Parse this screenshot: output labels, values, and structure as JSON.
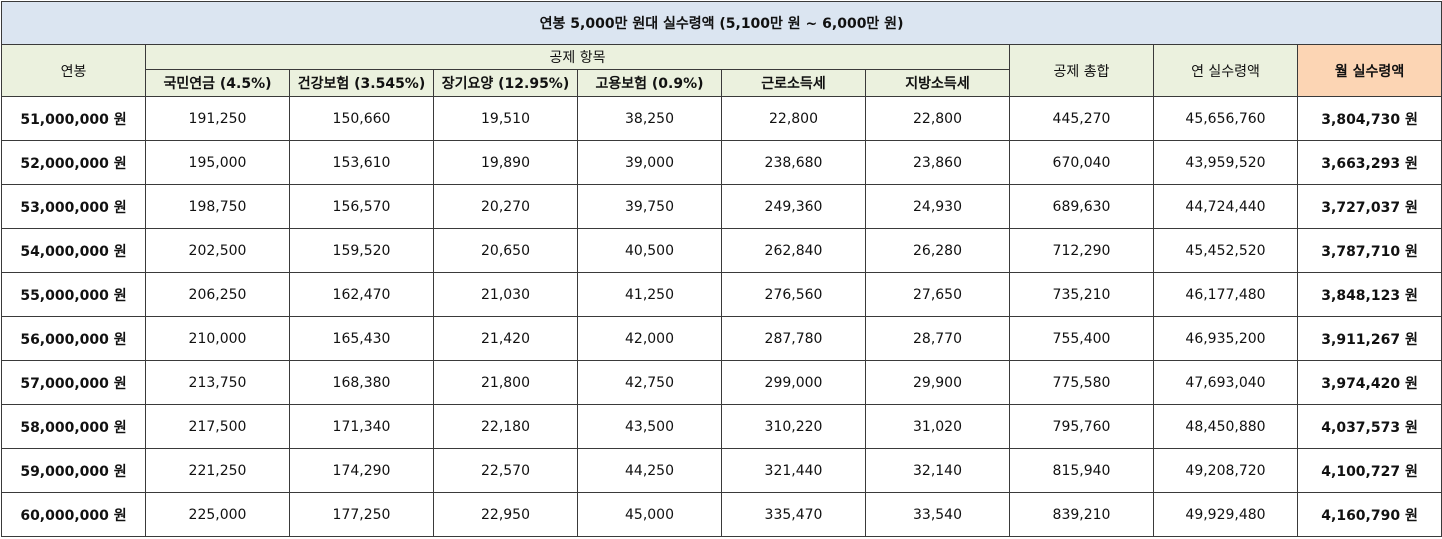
{
  "title": "연봉 5,000만 원대 실수령액 (5,100만 원 ~ 6,000만 원)",
  "headers": {
    "salary": "연봉",
    "deductions_group": "공제 항목",
    "total_deduction": "공제 총합",
    "annual_net": "연 실수령액",
    "monthly_net": "월 실수령액",
    "sub": [
      "국민연금 (4.5%)",
      "건강보험 (3.545%)",
      "장기요양 (12.95%)",
      "고용보험 (0.9%)",
      "근로소득세",
      "지방소득세"
    ]
  },
  "rows": [
    {
      "salary": "51,000,000 원",
      "pension": "191,250",
      "health": "150,660",
      "care": "19,510",
      "employment": "38,250",
      "income_tax": "22,800",
      "local_tax": "22,800",
      "total": "445,270",
      "annual": "45,656,760",
      "monthly": "3,804,730 원"
    },
    {
      "salary": "52,000,000 원",
      "pension": "195,000",
      "health": "153,610",
      "care": "19,890",
      "employment": "39,000",
      "income_tax": "238,680",
      "local_tax": "23,860",
      "total": "670,040",
      "annual": "43,959,520",
      "monthly": "3,663,293 원"
    },
    {
      "salary": "53,000,000 원",
      "pension": "198,750",
      "health": "156,570",
      "care": "20,270",
      "employment": "39,750",
      "income_tax": "249,360",
      "local_tax": "24,930",
      "total": "689,630",
      "annual": "44,724,440",
      "monthly": "3,727,037 원"
    },
    {
      "salary": "54,000,000 원",
      "pension": "202,500",
      "health": "159,520",
      "care": "20,650",
      "employment": "40,500",
      "income_tax": "262,840",
      "local_tax": "26,280",
      "total": "712,290",
      "annual": "45,452,520",
      "monthly": "3,787,710 원"
    },
    {
      "salary": "55,000,000 원",
      "pension": "206,250",
      "health": "162,470",
      "care": "21,030",
      "employment": "41,250",
      "income_tax": "276,560",
      "local_tax": "27,650",
      "total": "735,210",
      "annual": "46,177,480",
      "monthly": "3,848,123 원"
    },
    {
      "salary": "56,000,000 원",
      "pension": "210,000",
      "health": "165,430",
      "care": "21,420",
      "employment": "42,000",
      "income_tax": "287,780",
      "local_tax": "28,770",
      "total": "755,400",
      "annual": "46,935,200",
      "monthly": "3,911,267 원"
    },
    {
      "salary": "57,000,000 원",
      "pension": "213,750",
      "health": "168,380",
      "care": "21,800",
      "employment": "42,750",
      "income_tax": "299,000",
      "local_tax": "29,900",
      "total": "775,580",
      "annual": "47,693,040",
      "monthly": "3,974,420 원"
    },
    {
      "salary": "58,000,000 원",
      "pension": "217,500",
      "health": "171,340",
      "care": "22,180",
      "employment": "43,500",
      "income_tax": "310,220",
      "local_tax": "31,020",
      "total": "795,760",
      "annual": "48,450,880",
      "monthly": "4,037,573 원"
    },
    {
      "salary": "59,000,000 원",
      "pension": "221,250",
      "health": "174,290",
      "care": "22,570",
      "employment": "44,250",
      "income_tax": "321,440",
      "local_tax": "32,140",
      "total": "815,940",
      "annual": "49,208,720",
      "monthly": "4,100,727 원"
    },
    {
      "salary": "60,000,000 원",
      "pension": "225,000",
      "health": "177,250",
      "care": "22,950",
      "employment": "45,000",
      "income_tax": "335,470",
      "local_tax": "33,540",
      "total": "839,210",
      "annual": "49,929,480",
      "monthly": "4,160,790 원"
    }
  ],
  "colors": {
    "title_bg": "#dbe5f1",
    "header_bg": "#ebf1de",
    "monthly_header_bg": "#fcd5b4",
    "monthly_text": "#1f1fd6"
  }
}
